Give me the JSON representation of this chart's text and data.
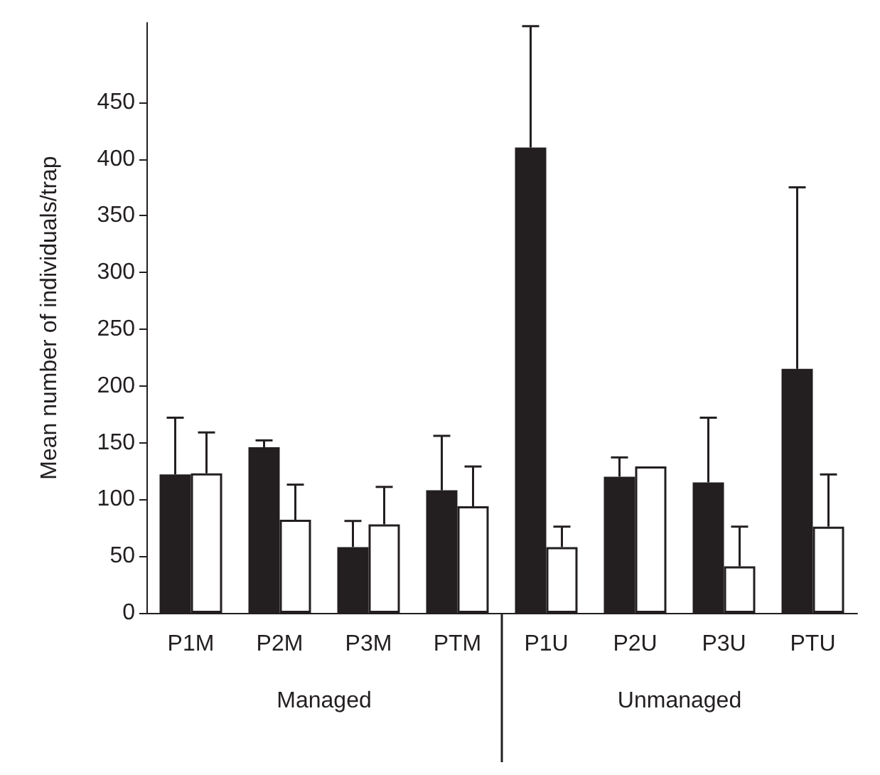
{
  "chart_data": {
    "type": "bar",
    "ylabel": "Mean number of individuals/trap",
    "categories": [
      "P1M",
      "P2M",
      "P3M",
      "PTM",
      "P1U",
      "P2U",
      "P3U",
      "PTU"
    ],
    "series": [
      {
        "color": "#231f20",
        "values": [
          122,
          146,
          58,
          108,
          410,
          120,
          115,
          215
        ],
        "errors": [
          50,
          6,
          23,
          48,
          107,
          17,
          57,
          160
        ]
      },
      {
        "color": "#ffffff",
        "values": [
          123,
          82,
          78,
          94,
          58,
          129,
          41,
          76
        ],
        "errors": [
          36,
          31,
          33,
          35,
          18,
          null,
          35,
          46
        ]
      }
    ],
    "ylim": [
      0,
      520
    ],
    "yticks": [
      0,
      50,
      100,
      150,
      200,
      250,
      300,
      350,
      400,
      450
    ],
    "grid": false,
    "annotations": [
      "Managed",
      "Unmanaged"
    ]
  }
}
